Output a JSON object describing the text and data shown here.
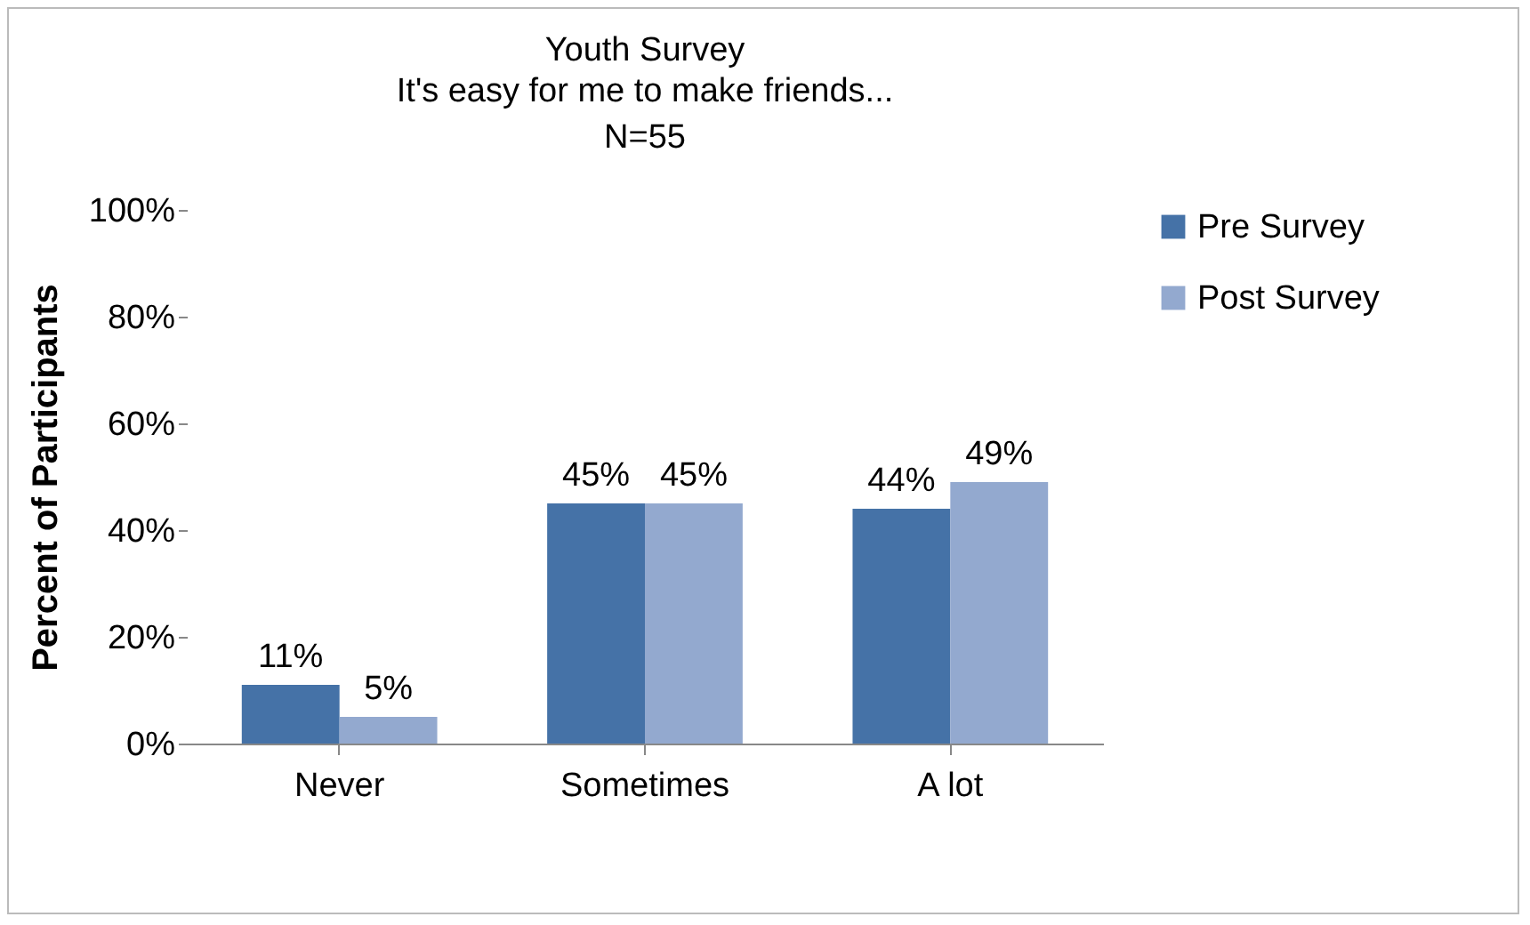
{
  "chart_data": {
    "type": "bar",
    "title": "Youth Survey",
    "subtitle": "It's easy for me to make friends...\nN=55",
    "ylabel": "Percent of Participants",
    "categories": [
      "Never",
      "Sometimes",
      "A lot"
    ],
    "series": [
      {
        "name": "Pre Survey",
        "color": "#4572a7",
        "values": [
          11,
          45,
          44
        ],
        "value_labels": [
          "11%",
          "45%",
          "44%"
        ]
      },
      {
        "name": "Post Survey",
        "color": "#93a9cf",
        "values": [
          5,
          45,
          49
        ],
        "value_labels": [
          "5%",
          "45%",
          "49%"
        ]
      }
    ],
    "ylim": [
      0,
      100
    ],
    "yticks": [
      {
        "value": 0,
        "label": "0%"
      },
      {
        "value": 20,
        "label": "20%"
      },
      {
        "value": 40,
        "label": "40%"
      },
      {
        "value": 60,
        "label": "60%"
      },
      {
        "value": 80,
        "label": "80%"
      },
      {
        "value": 100,
        "label": "100%"
      }
    ],
    "grid": false,
    "legend": "right"
  }
}
